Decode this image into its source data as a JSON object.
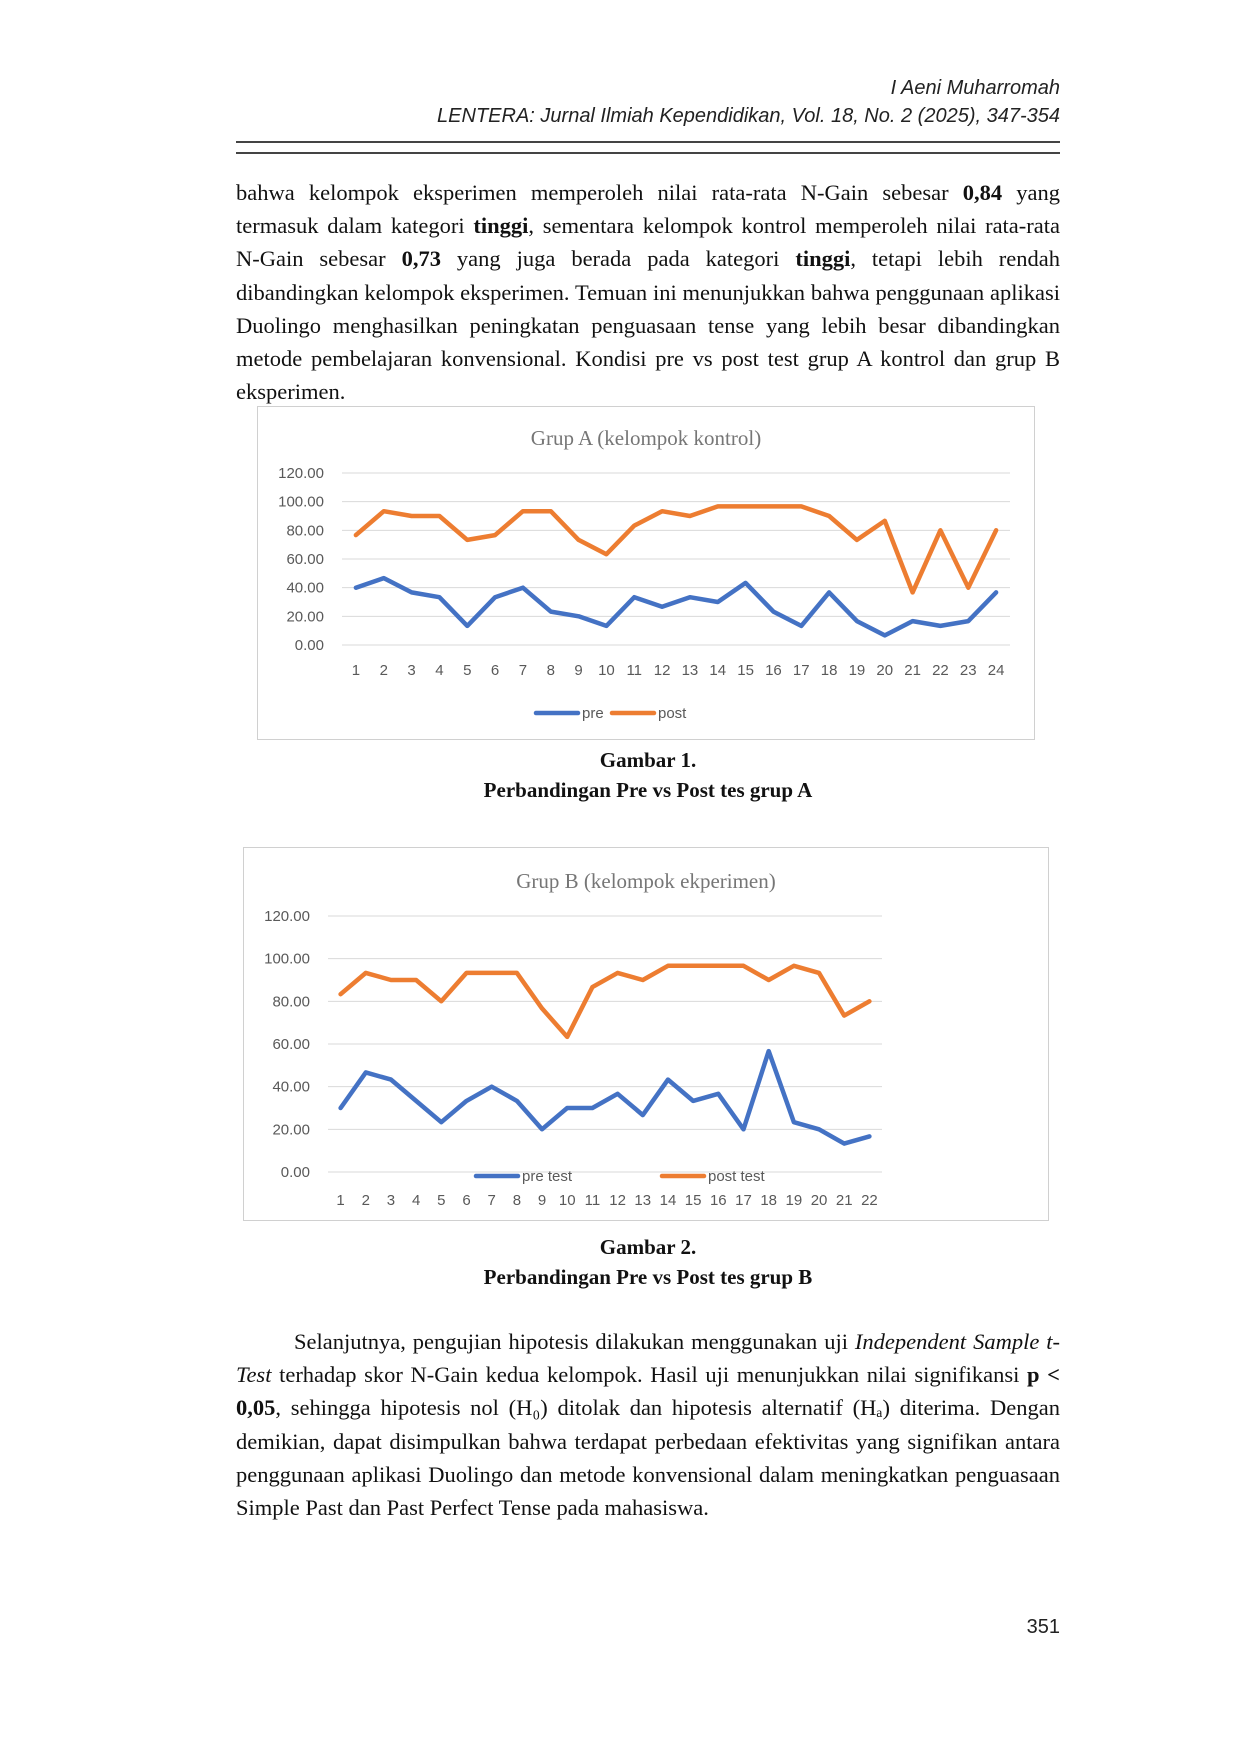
{
  "header": {
    "author": "I Aeni Muharromah",
    "journal": "LENTERA: Jurnal Ilmiah Kependidikan, Vol. 18, No. 2 (2025), 347-354"
  },
  "para1": {
    "t1": "bahwa kelompok eksperimen memperoleh nilai rata-rata N-Gain sebesar ",
    "b1": "0,84",
    "t2": " yang termasuk dalam kategori ",
    "b2": "tinggi",
    "t3": ", sementara kelompok kontrol memperoleh nilai rata-rata N-Gain sebesar ",
    "b3": "0,73",
    "t4": " yang juga berada pada kategori ",
    "b4": "tinggi",
    "t5": ", tetapi lebih rendah dibandingkan kelompok eksperimen. Temuan ini menunjukkan bahwa penggunaan aplikasi Duolingo menghasilkan peningkatan penguasaan tense yang lebih besar dibandingkan metode pembelajaran konvensional. Kondisi pre vs post test grup A kontrol dan grup B eksperimen."
  },
  "figure1": {
    "caption_line1": "Gambar 1.",
    "caption_line2": "Perbandingan Pre vs Post tes grup A"
  },
  "figure2": {
    "caption_line1": "Gambar 2.",
    "caption_line2": "Perbandingan Pre vs Post tes grup B"
  },
  "para2": {
    "t1": "Selanjutnya, pengujian hipotesis dilakukan menggunakan uji ",
    "i1": "Independent Sample t-Test",
    "t2": " terhadap skor N-Gain kedua kelompok. Hasil uji menunjukkan nilai signifikansi ",
    "b1": "p < 0,05",
    "t3": ", sehingga hipotesis nol (H₀) ditolak dan hipotesis alternatif (Hₐ) diterima. Dengan demikian, dapat disimpulkan bahwa terdapat perbedaan efektivitas yang signifikan antara penggunaan aplikasi Duolingo dan metode konvensional dalam meningkatkan penguasaan Simple Past dan Past Perfect Tense pada mahasiswa."
  },
  "page_number": "351",
  "chart_data": [
    {
      "type": "line",
      "title": "Grup A (kelompok kontrol)",
      "xlabel": "",
      "ylabel": "",
      "ylim": [
        0,
        120
      ],
      "yticks": [
        "0.00",
        "20.00",
        "40.00",
        "60.00",
        "80.00",
        "100.00",
        "120.00"
      ],
      "grid": true,
      "legend": "bottom",
      "categories": [
        "1",
        "2",
        "3",
        "4",
        "5",
        "6",
        "7",
        "8",
        "9",
        "10",
        "11",
        "12",
        "13",
        "14",
        "15",
        "16",
        "17",
        "18",
        "19",
        "20",
        "21",
        "22",
        "23",
        "24"
      ],
      "series": [
        {
          "name": "pre",
          "color": "#4472c4",
          "values": [
            40,
            46.67,
            36.67,
            33.33,
            13.33,
            33.33,
            40,
            23.33,
            20,
            13.33,
            33.33,
            26.67,
            33.33,
            30,
            43.33,
            23.33,
            13.33,
            36.67,
            16.67,
            6.67,
            16.67,
            13.33,
            16.67,
            36.67
          ]
        },
        {
          "name": "post",
          "color": "#ed7d31",
          "values": [
            76.67,
            93.33,
            90,
            90,
            73.33,
            76.67,
            93.33,
            93.33,
            73.33,
            63.33,
            83.33,
            93.33,
            90,
            96.67,
            96.67,
            96.67,
            96.67,
            90,
            73.33,
            86.67,
            36.67,
            80,
            40,
            80
          ]
        }
      ]
    },
    {
      "type": "line",
      "title": "Grup B (kelompok ekperimen)",
      "xlabel": "",
      "ylabel": "",
      "ylim": [
        0,
        120
      ],
      "yticks": [
        "0.00",
        "20.00",
        "40.00",
        "60.00",
        "80.00",
        "100.00",
        "120.00"
      ],
      "grid": true,
      "legend": "bottom",
      "categories": [
        "1",
        "2",
        "3",
        "4",
        "5",
        "6",
        "7",
        "8",
        "9",
        "10",
        "11",
        "12",
        "13",
        "14",
        "15",
        "16",
        "17",
        "18",
        "19",
        "20",
        "21",
        "22"
      ],
      "series": [
        {
          "name": "pre test",
          "color": "#4472c4",
          "values": [
            30,
            46.67,
            43.33,
            33.33,
            23.33,
            33.33,
            40,
            33.33,
            20,
            30,
            30,
            36.67,
            26.67,
            43.33,
            33.33,
            36.67,
            20,
            56.67,
            23.33,
            20,
            13.33,
            16.67
          ]
        },
        {
          "name": "post test",
          "color": "#ed7d31",
          "values": [
            83.33,
            93.33,
            90,
            90,
            80,
            93.33,
            93.33,
            93.33,
            76.67,
            63.33,
            86.67,
            93.33,
            90,
            96.67,
            96.67,
            96.67,
            96.67,
            90,
            96.67,
            93.33,
            73.33,
            80
          ]
        }
      ]
    }
  ]
}
